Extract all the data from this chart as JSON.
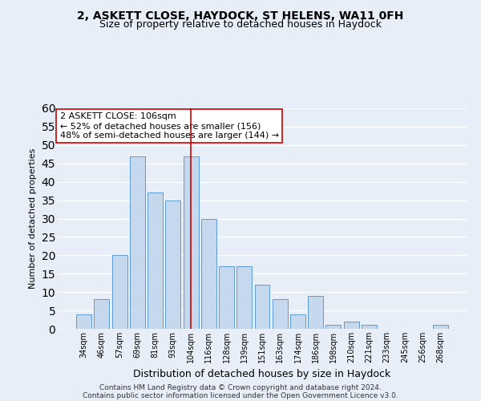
{
  "title": "2, ASKETT CLOSE, HAYDOCK, ST HELENS, WA11 0FH",
  "subtitle": "Size of property relative to detached houses in Haydock",
  "xlabel": "Distribution of detached houses by size in Haydock",
  "ylabel": "Number of detached properties",
  "categories": [
    "34sqm",
    "46sqm",
    "57sqm",
    "69sqm",
    "81sqm",
    "93sqm",
    "104sqm",
    "116sqm",
    "128sqm",
    "139sqm",
    "151sqm",
    "163sqm",
    "174sqm",
    "186sqm",
    "198sqm",
    "210sqm",
    "221sqm",
    "233sqm",
    "245sqm",
    "256sqm",
    "268sqm"
  ],
  "values": [
    4,
    8,
    20,
    47,
    37,
    35,
    47,
    30,
    17,
    17,
    12,
    8,
    4,
    9,
    1,
    2,
    1,
    0,
    0,
    0,
    1
  ],
  "bar_color": "#c5d8ed",
  "bar_edge_color": "#5b9bd5",
  "highlight_index": 6,
  "highlight_line_color": "#cc0000",
  "annotation_line1": "2 ASKETT CLOSE: 106sqm",
  "annotation_line2": "← 52% of detached houses are smaller (156)",
  "annotation_line3": "48% of semi-detached houses are larger (144) →",
  "annotation_box_color": "#ffffff",
  "annotation_box_edge": "#cc0000",
  "ylim": [
    0,
    60
  ],
  "yticks": [
    0,
    5,
    10,
    15,
    20,
    25,
    30,
    35,
    40,
    45,
    50,
    55,
    60
  ],
  "bg_color": "#e8eef7",
  "plot_bg_color": "#e8eef7",
  "footer1": "Contains HM Land Registry data © Crown copyright and database right 2024.",
  "footer2": "Contains public sector information licensed under the Open Government Licence v3.0.",
  "title_fontsize": 10,
  "subtitle_fontsize": 9,
  "xlabel_fontsize": 9,
  "ylabel_fontsize": 8,
  "tick_fontsize": 7,
  "annotation_fontsize": 8,
  "footer_fontsize": 6.5
}
